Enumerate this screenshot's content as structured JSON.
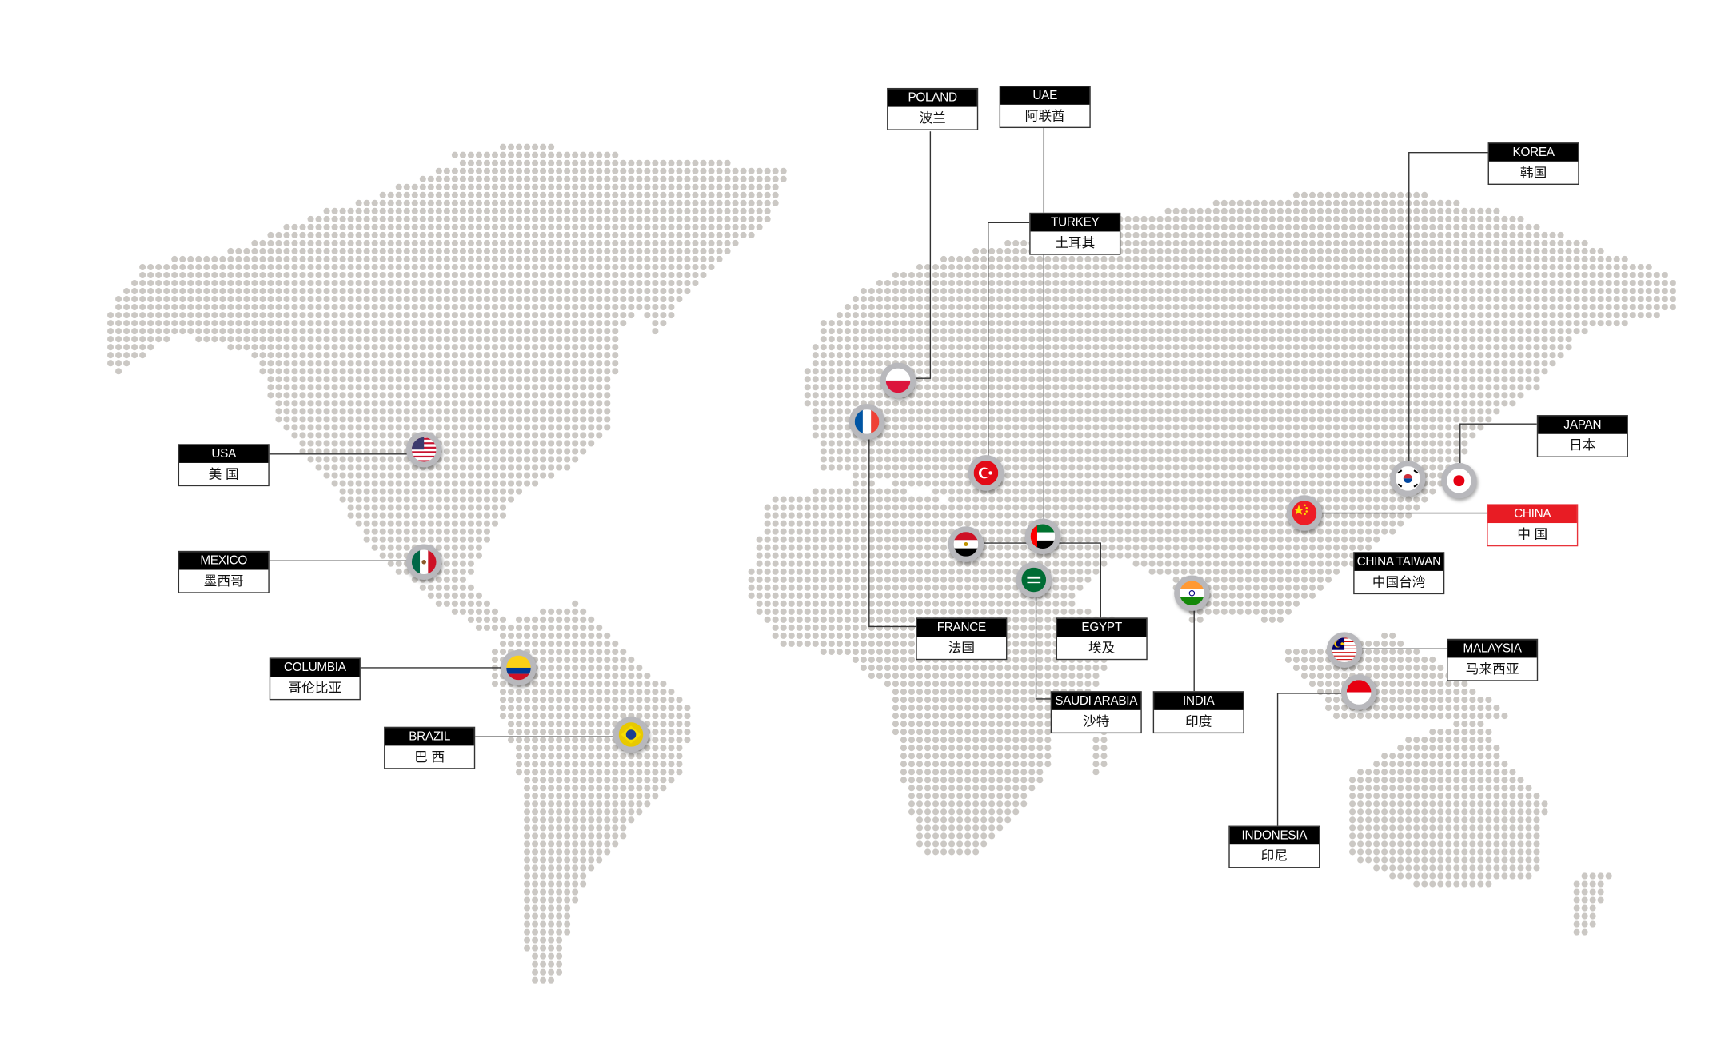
{
  "countries": [
    {
      "id": "usa",
      "en": "USA",
      "zh": "美 国",
      "flag": "usa"
    },
    {
      "id": "mexico",
      "en": "MEXICO",
      "zh": "墨西哥",
      "flag": "mexico"
    },
    {
      "id": "columbia",
      "en": "COLUMBIA",
      "zh": "哥伦比亚",
      "flag": "colombia"
    },
    {
      "id": "brazil",
      "en": "BRAZIL",
      "zh": "巴 西",
      "flag": "brazil"
    },
    {
      "id": "poland",
      "en": "POLAND",
      "zh": "波兰",
      "flag": "poland"
    },
    {
      "id": "uae",
      "en": "UAE",
      "zh": "阿联酋",
      "flag": "uae"
    },
    {
      "id": "turkey",
      "en": "TURKEY",
      "zh": "土耳其",
      "flag": "turkey"
    },
    {
      "id": "france",
      "en": "FRANCE",
      "zh": "法国",
      "flag": "france"
    },
    {
      "id": "egypt",
      "en": "EGYPT",
      "zh": "埃及",
      "flag": "egypt"
    },
    {
      "id": "saudi",
      "en": "SAUDI ARABIA",
      "zh": "沙特",
      "flag": "saudi"
    },
    {
      "id": "india",
      "en": "INDIA",
      "zh": "印度",
      "flag": "india"
    },
    {
      "id": "korea",
      "en": "KOREA",
      "zh": "韩国",
      "flag": "korea"
    },
    {
      "id": "japan",
      "en": "JAPAN",
      "zh": "日本",
      "flag": "japan"
    },
    {
      "id": "china",
      "en": "CHINA",
      "zh": "中 国",
      "flag": "china",
      "highlight": true
    },
    {
      "id": "taiwan",
      "en": "CHINA TAIWAN",
      "zh": "中国台湾"
    },
    {
      "id": "malaysia",
      "en": "MALAYSIA",
      "zh": "马来西亚",
      "flag": "malaysia"
    },
    {
      "id": "indonesia",
      "en": "INDONESIA",
      "zh": "印尼",
      "flag": "indonesia"
    }
  ],
  "colors": {
    "dot": "#cbc8c4",
    "highlight": "#e81c24",
    "label_header": "#000000",
    "connector": "#333333"
  }
}
